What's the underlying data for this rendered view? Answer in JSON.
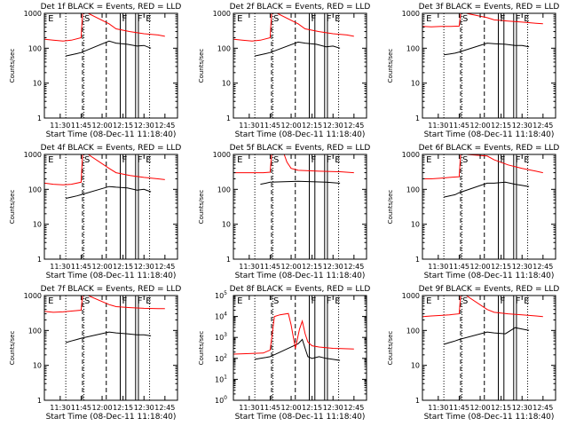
{
  "chart_data": [
    {
      "type": "line",
      "title": "Det 1f BLACK = Events, RED = LLD",
      "xlabel": "Start Time (08-Dec-11 11:18:40)",
      "ylabel": "Counts/sec",
      "x_ticks": [
        "11:30",
        "11:45",
        "12:00",
        "12:15",
        "12:30",
        "12:45"
      ],
      "y_ticks": [
        "1",
        "10",
        "100",
        "1000"
      ],
      "ylim": [
        1,
        1000
      ],
      "y_scale": "log",
      "markers": [
        "E",
        "S",
        "F",
        "F",
        "E"
      ],
      "series": [
        {
          "name": "BLACK = Events",
          "color": "#000000",
          "x": [
            "11:34",
            "11:38",
            "11:42",
            "11:45",
            "12:05",
            "12:10",
            "12:18",
            "12:25",
            "12:30",
            "12:35"
          ],
          "values": [
            60,
            65,
            70,
            75,
            160,
            140,
            130,
            115,
            120,
            100
          ]
        },
        {
          "name": "RED = LLD",
          "color": "#ff0000",
          "x": [
            "11:19",
            "11:25",
            "11:32",
            "11:38",
            "11:45",
            "11:46",
            "11:50",
            "12:05",
            "12:10",
            "12:20",
            "12:30",
            "12:40",
            "12:45"
          ],
          "values": [
            180,
            170,
            160,
            170,
            200,
            1000,
            1000,
            500,
            360,
            300,
            260,
            240,
            220
          ]
        }
      ]
    },
    {
      "type": "line",
      "title": "Det 2f BLACK = Events, RED = LLD",
      "xlabel": "Start Time (08-Dec-11 11:18:40)",
      "ylabel": "Counts/sec",
      "x_ticks": [
        "11:30",
        "11:45",
        "12:00",
        "12:15",
        "12:30",
        "12:45"
      ],
      "y_ticks": [
        "1",
        "10",
        "100",
        "1000"
      ],
      "ylim": [
        1,
        1000
      ],
      "y_scale": "log",
      "markers": [
        "E",
        "S",
        "F",
        "F",
        "E"
      ],
      "series": [
        {
          "name": "BLACK = Events",
          "color": "#000000",
          "x": [
            "11:34",
            "11:38",
            "11:42",
            "11:45",
            "12:05",
            "12:10",
            "12:18",
            "12:25",
            "12:30",
            "12:35"
          ],
          "values": [
            60,
            65,
            70,
            75,
            150,
            140,
            130,
            110,
            115,
            100
          ]
        },
        {
          "name": "RED = LLD",
          "color": "#ff0000",
          "x": [
            "11:19",
            "11:25",
            "11:32",
            "11:38",
            "11:45",
            "11:46",
            "11:50",
            "12:05",
            "12:10",
            "12:20",
            "12:30",
            "12:40",
            "12:45"
          ],
          "values": [
            180,
            170,
            160,
            170,
            200,
            1000,
            1000,
            500,
            360,
            300,
            260,
            240,
            220
          ]
        }
      ]
    },
    {
      "type": "line",
      "title": "Det 3f BLACK = Events, RED = LLD",
      "xlabel": "Start Time (08-Dec-11 11:18:40)",
      "ylabel": "Counts/sec",
      "x_ticks": [
        "11:30",
        "11:45",
        "12:00",
        "12:15",
        "12:30",
        "12:45"
      ],
      "y_ticks": [
        "1",
        "10",
        "100",
        "1000"
      ],
      "ylim": [
        1,
        1000
      ],
      "y_scale": "log",
      "markers": [
        "E",
        "S",
        "F",
        "F",
        "E"
      ],
      "series": [
        {
          "name": "BLACK = Events",
          "color": "#000000",
          "x": [
            "11:34",
            "11:38",
            "11:42",
            "11:45",
            "12:05",
            "12:10",
            "12:18",
            "12:25",
            "12:30",
            "12:35"
          ],
          "values": [
            65,
            68,
            72,
            78,
            140,
            135,
            130,
            120,
            120,
            110
          ]
        },
        {
          "name": "RED = LLD",
          "color": "#ff0000",
          "x": [
            "11:19",
            "11:25",
            "11:32",
            "11:38",
            "11:45",
            "11:46",
            "11:50",
            "12:05",
            "12:10",
            "12:20",
            "12:30",
            "12:40",
            "12:45"
          ],
          "values": [
            420,
            410,
            420,
            420,
            430,
            1000,
            1000,
            750,
            650,
            600,
            560,
            520,
            500
          ]
        }
      ]
    },
    {
      "type": "line",
      "title": "Det 4f BLACK = Events, RED = LLD",
      "xlabel": "Start Time (08-Dec-11 11:18:40)",
      "ylabel": "Counts/sec",
      "x_ticks": [
        "11:30",
        "11:45",
        "12:00",
        "12:15",
        "12:30",
        "12:45"
      ],
      "y_ticks": [
        "1",
        "10",
        "100",
        "1000"
      ],
      "ylim": [
        1,
        1000
      ],
      "y_scale": "log",
      "markers": [
        "E",
        "S",
        "F",
        "F",
        "E"
      ],
      "series": [
        {
          "name": "BLACK = Events",
          "color": "#000000",
          "x": [
            "11:34",
            "11:38",
            "11:42",
            "11:45",
            "12:05",
            "12:10",
            "12:18",
            "12:25",
            "12:30",
            "12:35"
          ],
          "values": [
            55,
            60,
            65,
            70,
            120,
            115,
            110,
            95,
            100,
            85
          ]
        },
        {
          "name": "RED = LLD",
          "color": "#ff0000",
          "x": [
            "11:19",
            "11:25",
            "11:32",
            "11:38",
            "11:45",
            "11:46",
            "11:50",
            "12:05",
            "12:10",
            "12:20",
            "12:30",
            "12:40",
            "12:45"
          ],
          "values": [
            150,
            140,
            135,
            140,
            160,
            1000,
            1000,
            400,
            300,
            250,
            220,
            200,
            190
          ]
        }
      ]
    },
    {
      "type": "line",
      "title": "Det 5f BLACK = Events, RED = LLD",
      "xlabel": "Start Time (08-Dec-11 11:18:40)",
      "ylabel": "Counts/sec",
      "x_ticks": [
        "11:30",
        "11:45",
        "12:00",
        "12:15",
        "12:30",
        "12:45"
      ],
      "y_ticks": [
        "1",
        "10",
        "100",
        "1000"
      ],
      "ylim": [
        1,
        1000
      ],
      "y_scale": "log",
      "markers": [
        "E",
        "S",
        "F",
        "F",
        "E"
      ],
      "series": [
        {
          "name": "BLACK = Events",
          "color": "#000000",
          "x": [
            "11:38",
            "11:42",
            "11:45",
            "12:05",
            "12:15",
            "12:25",
            "12:35"
          ],
          "values": [
            140,
            150,
            160,
            170,
            165,
            160,
            150
          ]
        },
        {
          "name": "RED = LLD",
          "color": "#ff0000",
          "x": [
            "11:19",
            "11:30",
            "11:40",
            "11:45",
            "11:46",
            "11:55",
            "11:57",
            "12:00",
            "12:05",
            "12:20",
            "12:35",
            "12:45"
          ],
          "values": [
            300,
            300,
            300,
            310,
            1000,
            1000,
            600,
            400,
            350,
            330,
            320,
            300
          ]
        }
      ]
    },
    {
      "type": "line",
      "title": "Det 6f BLACK = Events, RED = LLD",
      "xlabel": "Start Time (08-Dec-11 11:18:40)",
      "ylabel": "Counts/sec",
      "x_ticks": [
        "11:30",
        "11:45",
        "12:00",
        "12:15",
        "12:30",
        "12:45"
      ],
      "y_ticks": [
        "1",
        "10",
        "100",
        "1000"
      ],
      "ylim": [
        1,
        1000
      ],
      "y_scale": "log",
      "markers": [
        "E",
        "S",
        "F",
        "F",
        "E"
      ],
      "series": [
        {
          "name": "BLACK = Events",
          "color": "#000000",
          "x": [
            "11:34",
            "11:38",
            "11:42",
            "11:45",
            "12:05",
            "12:10",
            "12:18",
            "12:25",
            "12:30",
            "12:35"
          ],
          "values": [
            60,
            65,
            70,
            80,
            150,
            150,
            160,
            140,
            130,
            120
          ]
        },
        {
          "name": "RED = LLD",
          "color": "#ff0000",
          "x": [
            "11:19",
            "11:25",
            "11:32",
            "11:38",
            "11:45",
            "11:46",
            "11:50",
            "12:05",
            "12:10",
            "12:20",
            "12:30",
            "12:40",
            "12:45"
          ],
          "values": [
            200,
            200,
            210,
            220,
            230,
            1000,
            1000,
            900,
            700,
            500,
            400,
            330,
            300
          ]
        }
      ]
    },
    {
      "type": "line",
      "title": "Det 7f BLACK = Events, RED = LLD",
      "xlabel": "Start Time (08-Dec-11 11:18:40)",
      "ylabel": "Counts/sec",
      "x_ticks": [
        "11:30",
        "11:45",
        "12:00",
        "12:15",
        "12:30",
        "12:45"
      ],
      "y_ticks": [
        "1",
        "10",
        "100",
        "1000"
      ],
      "ylim": [
        1,
        1000
      ],
      "y_scale": "log",
      "markers": [
        "E",
        "S",
        "F",
        "F",
        "E"
      ],
      "series": [
        {
          "name": "BLACK = Events",
          "color": "#000000",
          "x": [
            "11:34",
            "11:38",
            "11:42",
            "11:45",
            "12:05",
            "12:10",
            "12:18",
            "12:25",
            "12:30",
            "12:35"
          ],
          "values": [
            45,
            50,
            55,
            60,
            90,
            85,
            80,
            75,
            75,
            70
          ]
        },
        {
          "name": "RED = LLD",
          "color": "#ff0000",
          "x": [
            "11:19",
            "11:25",
            "11:32",
            "11:38",
            "11:45",
            "11:46",
            "11:50",
            "12:05",
            "12:10",
            "12:20",
            "12:30",
            "12:40",
            "12:45"
          ],
          "values": [
            350,
            330,
            340,
            360,
            380,
            1000,
            1000,
            550,
            480,
            450,
            430,
            420,
            420
          ]
        }
      ]
    },
    {
      "type": "line",
      "title": "Det 8f BLACK = Events, RED = LLD",
      "xlabel": "Start Time (08-Dec-11 11:18:40)",
      "ylabel": "Counts/sec",
      "x_ticks": [
        "11:30",
        "11:45",
        "12:00",
        "12:15",
        "12:30",
        "12:45"
      ],
      "y_ticks": [
        "10^0",
        "10^1",
        "10^2",
        "10^3",
        "10^4",
        "10^5"
      ],
      "ylim": [
        1,
        100000
      ],
      "y_scale": "log",
      "markers": [
        "E",
        "S",
        "F",
        "F",
        "E"
      ],
      "series": [
        {
          "name": "BLACK = Events",
          "color": "#000000",
          "x": [
            "11:34",
            "11:38",
            "11:42",
            "11:45",
            "12:05",
            "12:08",
            "12:10",
            "12:12",
            "12:15",
            "12:20",
            "12:25",
            "12:30",
            "12:35"
          ],
          "values": [
            90,
            100,
            110,
            120,
            500,
            800,
            300,
            120,
            100,
            120,
            100,
            90,
            80
          ]
        },
        {
          "name": "RED = LLD",
          "color": "#ff0000",
          "x": [
            "11:19",
            "11:30",
            "11:40",
            "11:45",
            "11:48",
            "11:52",
            "11:58",
            "12:00",
            "12:03",
            "12:06",
            "12:08",
            "12:10",
            "12:12",
            "12:15",
            "12:20",
            "12:30",
            "12:45"
          ],
          "values": [
            160,
            170,
            180,
            250,
            10000,
            12000,
            14000,
            4000,
            300,
            2500,
            6000,
            1500,
            600,
            400,
            350,
            300,
            280
          ]
        }
      ]
    },
    {
      "type": "line",
      "title": "Det 9f BLACK = Events, RED = LLD",
      "xlabel": "Start Time (08-Dec-11 11:18:40)",
      "ylabel": "Counts/sec",
      "x_ticks": [
        "11:30",
        "11:45",
        "12:00",
        "12:15",
        "12:30",
        "12:45"
      ],
      "y_ticks": [
        "1",
        "10",
        "100",
        "1000"
      ],
      "ylim": [
        1,
        1000
      ],
      "y_scale": "log",
      "markers": [
        "E",
        "S",
        "F",
        "F",
        "E"
      ],
      "series": [
        {
          "name": "BLACK = Events",
          "color": "#000000",
          "x": [
            "11:34",
            "11:38",
            "11:42",
            "11:45",
            "12:05",
            "12:10",
            "12:18",
            "12:25",
            "12:30",
            "12:35"
          ],
          "values": [
            40,
            45,
            50,
            55,
            90,
            85,
            80,
            120,
            110,
            100
          ]
        },
        {
          "name": "RED = LLD",
          "color": "#ff0000",
          "x": [
            "11:19",
            "11:25",
            "11:32",
            "11:38",
            "11:45",
            "11:46",
            "11:50",
            "12:05",
            "12:10",
            "12:20",
            "12:30",
            "12:40",
            "12:45"
          ],
          "values": [
            250,
            260,
            270,
            280,
            300,
            1000,
            1000,
            400,
            330,
            300,
            280,
            260,
            250
          ]
        }
      ]
    }
  ]
}
